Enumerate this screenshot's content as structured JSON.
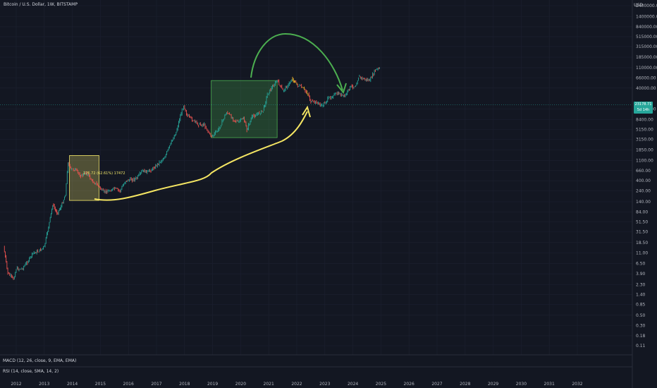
{
  "header": {
    "title": "Bitcoin / U.S. Dollar, 1W, BITSTAMP",
    "currency": "USD"
  },
  "price_tag": {
    "price": "23178.71",
    "countdown": "5d 14h",
    "color": "#26a69a"
  },
  "indicators": {
    "macd_label": "MACD (12, 26, close, 9, EMA, EMA)",
    "rsi_label": "RSI (14, close, SMA, 14, 2)"
  },
  "annotations": {
    "range_label": "176.72 (62.61%) 17472"
  },
  "colors": {
    "background": "#131722",
    "up": "#26a69a",
    "down": "#ef5350",
    "box_yellow": "#f2e66a",
    "box_green": "#4caf50",
    "arrow_yellow": "#f5e663",
    "arrow_green": "#4caf50"
  },
  "chart_data": {
    "type": "line",
    "scale": "log",
    "ylabel": "USD",
    "y_ticks": [
      "2400000.00",
      "1400000.00",
      "840000.00",
      "515000.00",
      "315000.00",
      "185000.00",
      "110000.00",
      "66000.00",
      "40000.00",
      "23178.71",
      "14000.00",
      "8400.00",
      "5150.00",
      "3150.00",
      "1850.00",
      "1100.00",
      "660.00",
      "400.00",
      "240.00",
      "140.00",
      "84.00",
      "51.50",
      "31.50",
      "18.50",
      "11.00",
      "6.50",
      "3.90",
      "2.30",
      "1.40",
      "0.85",
      "0.50",
      "0.30",
      "0.18",
      "0.11"
    ],
    "x_ticks": [
      "2012",
      "2013",
      "2014",
      "2015",
      "2016",
      "2017",
      "2018",
      "2019",
      "2020",
      "2021",
      "2022",
      "2023",
      "2024",
      "2025",
      "2026",
      "2027",
      "2028",
      "2029",
      "2030",
      "2031",
      "2032"
    ],
    "series": [
      {
        "x": [
          2011.55,
          2011.7,
          2011.9,
          2012.0,
          2012.2,
          2012.4,
          2012.6,
          2012.8,
          2013.0,
          2013.15,
          2013.3,
          2013.45,
          2013.6,
          2013.75,
          2013.85,
          2013.95,
          2014.1,
          2014.3,
          2014.5,
          2014.7,
          2014.9,
          2015.1,
          2015.3,
          2015.5,
          2015.7,
          2015.9,
          2016.1,
          2016.3,
          2016.5,
          2016.7,
          2016.9,
          2017.1,
          2017.3,
          2017.5,
          2017.7,
          2017.85,
          2017.97,
          2018.1,
          2018.3,
          2018.5,
          2018.7,
          2018.9,
          2019.0,
          2019.2,
          2019.4,
          2019.5,
          2019.7,
          2019.9,
          2020.1,
          2020.22,
          2020.4,
          2020.6,
          2020.8,
          2020.95,
          2021.1,
          2021.3,
          2021.5,
          2021.7,
          2021.85,
          2022.0,
          2022.2,
          2022.4,
          2022.5,
          2022.7,
          2022.9,
          2023.1,
          2023.3,
          2023.5,
          2023.7,
          2023.9,
          2024.1,
          2024.2,
          2024.4,
          2024.6,
          2024.8,
          2024.95
        ],
        "y": [
          15,
          4,
          3,
          5,
          5,
          7,
          11,
          12,
          15,
          40,
          120,
          80,
          110,
          200,
          1000,
          700,
          700,
          500,
          600,
          400,
          320,
          230,
          240,
          270,
          240,
          400,
          420,
          450,
          650,
          620,
          750,
          1000,
          1300,
          2500,
          4500,
          10000,
          17000,
          10000,
          8000,
          6500,
          6500,
          4000,
          3700,
          5000,
          9000,
          12000,
          9000,
          7300,
          9000,
          5000,
          9500,
          11000,
          13000,
          29000,
          40000,
          58000,
          35000,
          47000,
          64000,
          47000,
          40000,
          30000,
          20000,
          19500,
          16500,
          23000,
          28000,
          30000,
          26000,
          42000,
          45000,
          70000,
          62000,
          58000,
          98000,
          105000
        ]
      }
    ],
    "boxes": [
      {
        "color": "yellow",
        "x0": 2013.9,
        "x1": 2014.95,
        "y0": 1400,
        "y1": 150
      },
      {
        "color": "green",
        "x0": 2018.95,
        "x1": 2021.3,
        "y0": 58000,
        "y1": 3400
      }
    ]
  }
}
